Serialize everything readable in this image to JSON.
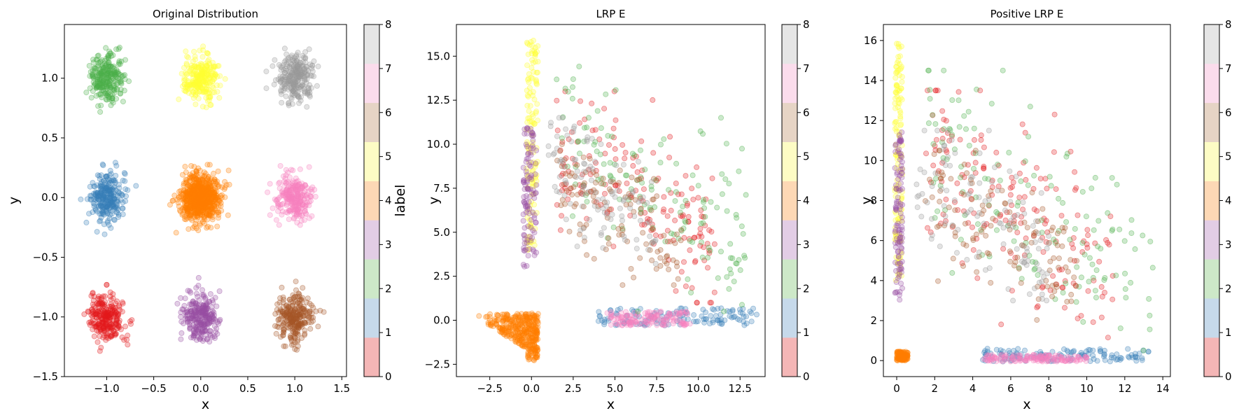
{
  "cmap": [
    "#f4b6b6",
    "#c6d9ea",
    "#cde8c8",
    "#e2cde5",
    "#fdd8b5",
    "#fdfcc4",
    "#e6d4c5",
    "#fbdcec",
    "#e5e5e5"
  ],
  "colorbar": {
    "label": "label",
    "ticks": [
      "0",
      "1",
      "2",
      "3",
      "4",
      "5",
      "6",
      "7",
      "8"
    ]
  },
  "chart_data": [
    {
      "type": "scatter",
      "title": "Original Distribution",
      "xlabel": "x",
      "ylabel": "y",
      "xlim": [
        -1.45,
        1.55
      ],
      "ylim": [
        -1.5,
        1.45
      ],
      "xticks": [
        -1.0,
        -0.5,
        0.0,
        0.5,
        1.0,
        1.5
      ],
      "xtick_labels": [
        "−1.0",
        "−0.5",
        "0.0",
        "0.5",
        "1.0",
        "1.5"
      ],
      "yticks": [
        -1.5,
        -1.0,
        -0.5,
        0.0,
        0.5,
        1.0
      ],
      "ytick_labels": [
        "−1.5",
        "−1.0",
        "−0.5",
        "0.0",
        "0.5",
        "1.0"
      ],
      "series": [
        {
          "label": 0,
          "color": "#e41a1c",
          "center": [
            -1.0,
            -1.0
          ],
          "spread": [
            0.09,
            0.1
          ],
          "count": 260
        },
        {
          "label": 1,
          "color": "#377eb8",
          "center": [
            -1.0,
            0.0
          ],
          "spread": [
            0.09,
            0.1
          ],
          "count": 260
        },
        {
          "label": 2,
          "color": "#4daf4a",
          "center": [
            -1.0,
            1.0
          ],
          "spread": [
            0.09,
            0.1
          ],
          "count": 260
        },
        {
          "label": 3,
          "color": "#984ea3",
          "center": [
            0.0,
            -1.0
          ],
          "spread": [
            0.09,
            0.1
          ],
          "count": 260
        },
        {
          "label": 4,
          "color": "#ff7f00",
          "center": [
            0.0,
            0.0
          ],
          "spread": [
            0.1,
            0.1
          ],
          "count": 700
        },
        {
          "label": 5,
          "color": "#ffff33",
          "center": [
            0.0,
            1.0
          ],
          "spread": [
            0.09,
            0.1
          ],
          "count": 260
        },
        {
          "label": 6,
          "color": "#a65628",
          "center": [
            1.0,
            -1.0
          ],
          "spread": [
            0.09,
            0.1
          ],
          "count": 260
        },
        {
          "label": 7,
          "color": "#f781bf",
          "center": [
            1.0,
            0.0
          ],
          "spread": [
            0.09,
            0.1
          ],
          "count": 260
        },
        {
          "label": 8,
          "color": "#999999",
          "center": [
            1.0,
            1.0
          ],
          "spread": [
            0.09,
            0.1
          ],
          "count": 260
        }
      ]
    },
    {
      "type": "scatter",
      "title": "LRP E",
      "xlabel": "x",
      "ylabel": "y",
      "xlim": [
        -4.5,
        14.0
      ],
      "ylim": [
        -3.2,
        16.8
      ],
      "xticks": [
        -2.5,
        0.0,
        2.5,
        5.0,
        7.5,
        10.0,
        12.5
      ],
      "xtick_labels": [
        "−2.5",
        "0.0",
        "2.5",
        "5.0",
        "7.5",
        "10.0",
        "12.5"
      ],
      "yticks": [
        -2.5,
        0.0,
        2.5,
        5.0,
        7.5,
        10.0,
        12.5,
        15.0
      ],
      "ytick_labels": [
        "−2.5",
        "0.0",
        "2.5",
        "5.0",
        "7.5",
        "10.0",
        "12.5",
        "15.0"
      ],
      "series": [
        {
          "label": 4,
          "color": "#ff7f00",
          "shape": "wedge",
          "x_range": [
            -3.8,
            0.4
          ],
          "y_range": [
            -2.3,
            0.4
          ],
          "count": 350
        },
        {
          "label": 5,
          "color": "#ffff33",
          "shape": "column",
          "x_range": [
            -0.3,
            0.4
          ],
          "y_range": [
            4.0,
            16.0
          ],
          "count": 130
        },
        {
          "label": 3,
          "color": "#984ea3",
          "shape": "column",
          "x_range": [
            -0.5,
            0.3
          ],
          "y_range": [
            3.0,
            11.0
          ],
          "count": 110
        },
        {
          "label": 1,
          "color": "#377eb8",
          "shape": "band",
          "x_range": [
            4.0,
            13.5
          ],
          "y_range": [
            -0.3,
            0.7
          ],
          "count": 130
        },
        {
          "label": 7,
          "color": "#f781bf",
          "shape": "band",
          "x_range": [
            4.5,
            9.5
          ],
          "y_range": [
            -0.3,
            0.5
          ],
          "count": 140
        },
        {
          "label": 0,
          "color": "#e41a1c",
          "shape": "cloud",
          "x_range": [
            1.5,
            11.0
          ],
          "y_range": [
            1.0,
            13.0
          ],
          "count": 170
        },
        {
          "label": 2,
          "color": "#4daf4a",
          "shape": "cloud",
          "x_range": [
            1.5,
            13.0
          ],
          "y_range": [
            0.5,
            14.5
          ],
          "count": 140
        },
        {
          "label": 6,
          "color": "#a65628",
          "shape": "cloud",
          "x_range": [
            1.5,
            9.0
          ],
          "y_range": [
            2.0,
            10.0
          ],
          "count": 110
        },
        {
          "label": 8,
          "color": "#999999",
          "shape": "cloud",
          "x_range": [
            1.0,
            7.5
          ],
          "y_range": [
            3.0,
            11.5
          ],
          "count": 110
        }
      ]
    },
    {
      "type": "scatter",
      "title": "Positive LRP E",
      "xlabel": "x",
      "ylabel": "y",
      "xlim": [
        -0.7,
        14.4
      ],
      "ylim": [
        -0.8,
        16.8
      ],
      "xticks": [
        0,
        2,
        4,
        6,
        8,
        10,
        12,
        14
      ],
      "xtick_labels": [
        "0",
        "2",
        "4",
        "6",
        "8",
        "10",
        "12",
        "14"
      ],
      "yticks": [
        0,
        2,
        4,
        6,
        8,
        10,
        12,
        14,
        16
      ],
      "ytick_labels": [
        "0",
        "2",
        "4",
        "6",
        "8",
        "10",
        "12",
        "14",
        "16"
      ],
      "series": [
        {
          "label": 4,
          "color": "#ff7f00",
          "shape": "blob",
          "x_range": [
            0.0,
            0.6
          ],
          "y_range": [
            0.0,
            0.45
          ],
          "count": 120
        },
        {
          "label": 5,
          "color": "#ffff33",
          "shape": "column",
          "x_range": [
            -0.1,
            0.3
          ],
          "y_range": [
            4.0,
            16.0
          ],
          "count": 130
        },
        {
          "label": 3,
          "color": "#984ea3",
          "shape": "column",
          "x_range": [
            -0.1,
            0.3
          ],
          "y_range": [
            3.0,
            11.5
          ],
          "count": 110
        },
        {
          "label": 1,
          "color": "#377eb8",
          "shape": "band",
          "x_range": [
            4.5,
            13.5
          ],
          "y_range": [
            -0.05,
            0.6
          ],
          "count": 130
        },
        {
          "label": 7,
          "color": "#f781bf",
          "shape": "band",
          "x_range": [
            4.5,
            10.0
          ],
          "y_range": [
            -0.05,
            0.3
          ],
          "count": 140
        },
        {
          "label": 0,
          "color": "#e41a1c",
          "shape": "cloud",
          "x_range": [
            1.5,
            11.5
          ],
          "y_range": [
            1.0,
            13.5
          ],
          "count": 170
        },
        {
          "label": 2,
          "color": "#4daf4a",
          "shape": "cloud",
          "x_range": [
            1.5,
            13.5
          ],
          "y_range": [
            0.5,
            14.5
          ],
          "count": 140
        },
        {
          "label": 6,
          "color": "#a65628",
          "shape": "cloud",
          "x_range": [
            1.5,
            9.5
          ],
          "y_range": [
            2.0,
            10.5
          ],
          "count": 110
        },
        {
          "label": 8,
          "color": "#999999",
          "shape": "cloud",
          "x_range": [
            1.0,
            8.0
          ],
          "y_range": [
            3.0,
            11.5
          ],
          "count": 110
        }
      ]
    }
  ]
}
